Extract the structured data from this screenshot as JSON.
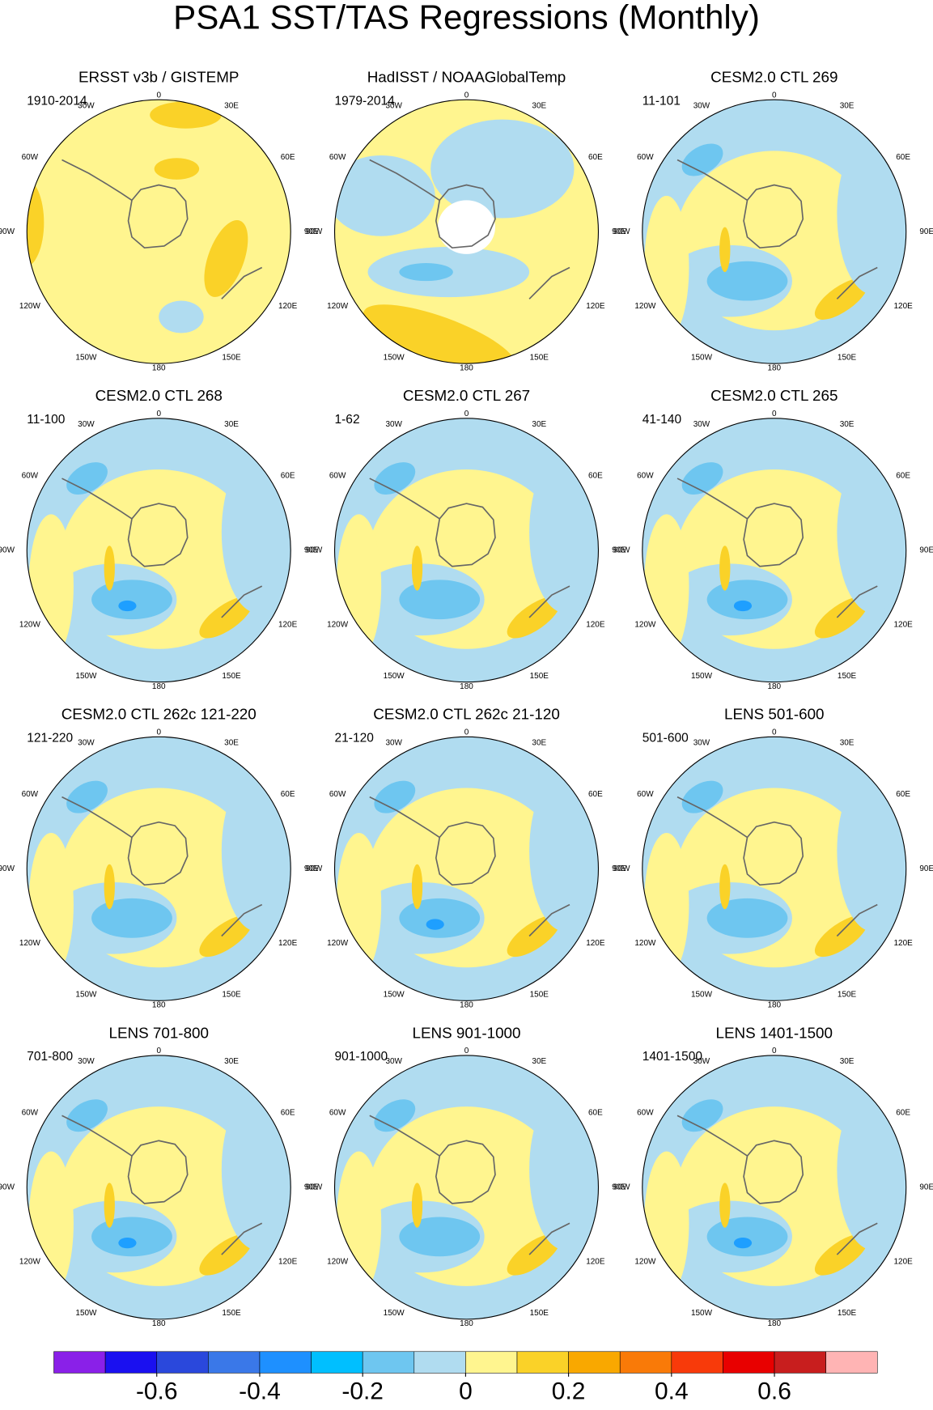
{
  "title": "PSA1 SST/TAS Regressions (Monthly)",
  "longitude_labels": [
    "0",
    "30E",
    "60E",
    "90E",
    "120E",
    "150E",
    "180",
    "150W",
    "120W",
    "90W",
    "60W",
    "30W"
  ],
  "panels": [
    {
      "title": "ERSST v3b / GISTEMP",
      "period": "1910-2014"
    },
    {
      "title": "HadISST / NOAAGlobalTemp",
      "period": "1979-2014"
    },
    {
      "title": "CESM2.0 CTL 269",
      "period": "11-101"
    },
    {
      "title": "CESM2.0 CTL 268",
      "period": "11-100"
    },
    {
      "title": "CESM2.0 CTL 267",
      "period": "1-62"
    },
    {
      "title": "CESM2.0 CTL 265",
      "period": "41-140"
    },
    {
      "title": "CESM2.0 CTL 262c 121-220",
      "period": "121-220"
    },
    {
      "title": "CESM2.0 CTL 262c 21-120",
      "period": "21-120"
    },
    {
      "title": "LENS 501-600",
      "period": "501-600"
    },
    {
      "title": "LENS 701-800",
      "period": "701-800"
    },
    {
      "title": "LENS 901-1000",
      "period": "901-1000"
    },
    {
      "title": "LENS 1401-1500",
      "period": "1401-1500"
    }
  ],
  "colorbar": {
    "colors": [
      "#8a20e8",
      "#1a10f0",
      "#2a48dc",
      "#3a78e8",
      "#1e90ff",
      "#00bfff",
      "#6ec6f0",
      "#b0dcf0",
      "#fff58f",
      "#fad228",
      "#f9a800",
      "#f97a08",
      "#f83a0a",
      "#e80000",
      "#c81e1e",
      "#ffb4b4"
    ],
    "ticks": [
      -0.6,
      -0.4,
      -0.2,
      0,
      0.2,
      0.4,
      0.6
    ]
  }
}
